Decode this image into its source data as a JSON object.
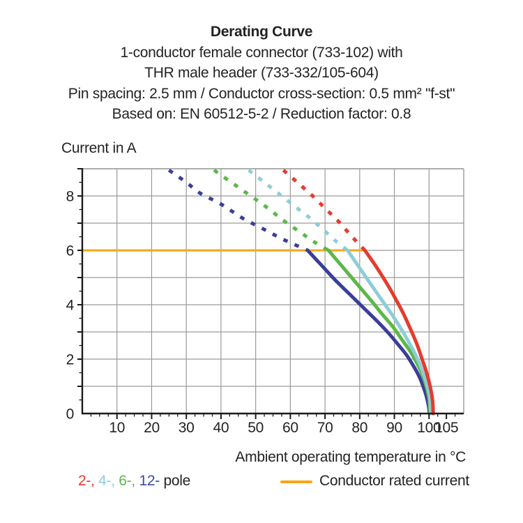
{
  "title": {
    "line1": "Derating Curve",
    "line2": "1-conductor female connector (733-102) with",
    "line3": "THR male header (733-332/105-604)",
    "line4": "Pin spacing: 2.5 mm / Conductor cross-section: 0.5 mm² \"f-st\"",
    "line5": "Based on: EN 60512-5-2 / Reduction factor: 0.8"
  },
  "y_axis_title": "Current in A",
  "x_axis_title": "Ambient operating temperature in °C",
  "legend": {
    "poles": [
      {
        "label": "2-,",
        "color": "#e63b2e"
      },
      {
        "label": " 4-,",
        "color": "#8ecdd7"
      },
      {
        "label": " 6-,",
        "color": "#5cb848"
      },
      {
        "label": " 12-",
        "color": "#3b4aa0"
      }
    ],
    "poles_suffix": " pole",
    "rated_label": "Conductor rated current"
  },
  "colors": {
    "grid": "#9a9a9a",
    "axis": "#1a1a1a",
    "text": "#232323",
    "rated": "#f9a61a"
  },
  "chart_data": {
    "type": "line",
    "title": "Derating Curve",
    "xlabel": "Ambient operating temperature in °C",
    "ylabel": "Current in A",
    "xlim": [
      0,
      110
    ],
    "ylim": [
      0,
      9
    ],
    "grid": "on",
    "x_major_ticks": [
      10,
      20,
      30,
      40,
      50,
      60,
      70,
      80,
      90,
      100,
      105
    ],
    "x_minor_step": 2.5,
    "x_grid_step": 10,
    "y_grid_step": 1,
    "y_tick_labels": [
      0,
      2,
      4,
      6,
      8
    ],
    "y_minor_step": 0.5,
    "rated_current": {
      "label": "Conductor rated current",
      "value": 6,
      "x_start": 0,
      "x_end": 81.5,
      "color": "#f9a61a"
    },
    "series": [
      {
        "name": "12-pole",
        "color": "#3b3e99",
        "dashed": [
          [
            25,
            8.95
          ],
          [
            30,
            8.5
          ],
          [
            34,
            8.1
          ],
          [
            40,
            7.7
          ],
          [
            46,
            7.2
          ],
          [
            52,
            6.8
          ],
          [
            58,
            6.4
          ],
          [
            65,
            6.0
          ]
        ],
        "solid": [
          [
            65,
            6
          ],
          [
            69,
            5.45
          ],
          [
            73,
            4.9
          ],
          [
            77,
            4.4
          ],
          [
            81,
            3.9
          ],
          [
            85,
            3.4
          ],
          [
            88,
            3.0
          ],
          [
            91,
            2.55
          ],
          [
            93.5,
            2.15
          ],
          [
            95.5,
            1.75
          ],
          [
            97,
            1.4
          ],
          [
            98.3,
            1.0
          ],
          [
            99.3,
            0.6
          ],
          [
            99.9,
            0.25
          ],
          [
            100.1,
            0
          ]
        ]
      },
      {
        "name": "6-pole",
        "color": "#5cb848",
        "dashed": [
          [
            38,
            8.95
          ],
          [
            43,
            8.5
          ],
          [
            48,
            8.05
          ],
          [
            53,
            7.6
          ],
          [
            58,
            7.1
          ],
          [
            63,
            6.65
          ],
          [
            67,
            6.3
          ],
          [
            71,
            6.0
          ]
        ],
        "solid": [
          [
            71,
            6
          ],
          [
            75,
            5.4
          ],
          [
            79,
            4.8
          ],
          [
            83,
            4.2
          ],
          [
            86.5,
            3.65
          ],
          [
            89.5,
            3.2
          ],
          [
            92,
            2.75
          ],
          [
            94.5,
            2.3
          ],
          [
            96.5,
            1.85
          ],
          [
            98,
            1.45
          ],
          [
            99.2,
            1.0
          ],
          [
            100,
            0.55
          ],
          [
            100.3,
            0
          ]
        ]
      },
      {
        "name": "4-pole",
        "color": "#8ecdd7",
        "dashed": [
          [
            48,
            8.95
          ],
          [
            52.5,
            8.5
          ],
          [
            57,
            8.05
          ],
          [
            61.5,
            7.6
          ],
          [
            66,
            7.15
          ],
          [
            70,
            6.7
          ],
          [
            73.5,
            6.3
          ],
          [
            76.5,
            6.0
          ]
        ],
        "solid": [
          [
            76.5,
            6
          ],
          [
            80,
            5.35
          ],
          [
            83.5,
            4.7
          ],
          [
            86.5,
            4.15
          ],
          [
            89.5,
            3.6
          ],
          [
            92,
            3.1
          ],
          [
            94.5,
            2.55
          ],
          [
            96.5,
            2.05
          ],
          [
            98,
            1.6
          ],
          [
            99.3,
            1.1
          ],
          [
            100.2,
            0.6
          ],
          [
            100.5,
            0
          ]
        ]
      },
      {
        "name": "2-pole",
        "color": "#e63b2e",
        "dashed": [
          [
            58,
            8.95
          ],
          [
            62,
            8.5
          ],
          [
            66,
            8.05
          ],
          [
            70,
            7.55
          ],
          [
            74,
            7.05
          ],
          [
            77.8,
            6.5
          ],
          [
            81.5,
            6.0
          ]
        ],
        "solid": [
          [
            81.5,
            6
          ],
          [
            84.5,
            5.45
          ],
          [
            87.5,
            4.85
          ],
          [
            90,
            4.3
          ],
          [
            92.5,
            3.7
          ],
          [
            94.5,
            3.15
          ],
          [
            96.5,
            2.55
          ],
          [
            98,
            2.0
          ],
          [
            99.3,
            1.5
          ],
          [
            100.3,
            1.0
          ],
          [
            101,
            0.5
          ],
          [
            101.2,
            0
          ]
        ]
      }
    ]
  }
}
